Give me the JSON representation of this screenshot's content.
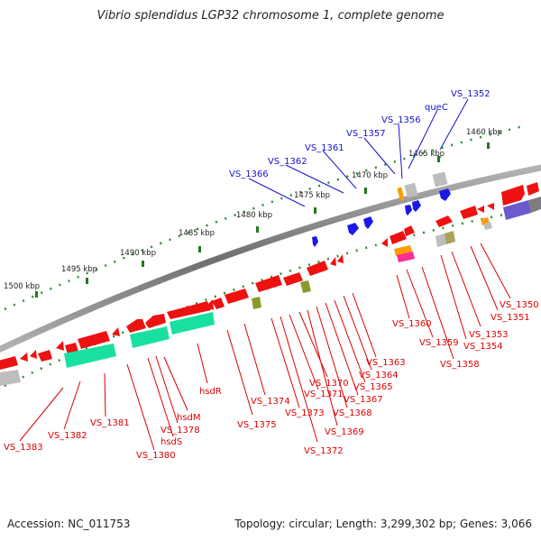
{
  "title": "Vibrio splendidus LGP32 chromosome 1, complete genome",
  "footer": {
    "accession": "Accession: NC_011753",
    "summary": "Topology: circular; Length: 3,299,302 bp; Genes: 3,066"
  },
  "colors": {
    "backbone": "#8a8a8a",
    "forward_gene_label": "#1414c8",
    "reverse_gene_label": "#dc0000",
    "gene_red": "#ee1111",
    "gene_blue": "#1a1ae6",
    "gene_teal": "#19e0a0",
    "gene_gray": "#bdbdbd",
    "gene_olive": "#8a9a2a",
    "gene_orange": "#ff9a00",
    "gene_purple": "#6a5acd",
    "ruler_dots": "#2e8b2e"
  },
  "ruler_labels": [
    "1460 kbp",
    "1465 kbp",
    "1470 kbp",
    "1475 kbp",
    "1480 kbp",
    "1485 kbp",
    "1490 kbp",
    "1495 kbp",
    "1500 kbp"
  ],
  "forward_gene_labels": [
    "VS_1352",
    "queC",
    "VS_1356",
    "VS_1357",
    "VS_1361",
    "VS_1362",
    "VS_1366"
  ],
  "reverse_gene_labels": [
    "VS_1350",
    "VS_1351",
    "VS_1353",
    "VS_1354",
    "VS_1358",
    "VS_1359",
    "VS_1360",
    "VS_1363",
    "VS_1364",
    "VS_1365",
    "VS_1367",
    "VS_1368",
    "VS_1369",
    "VS_1370",
    "VS_1371",
    "VS_1372",
    "VS_1373",
    "VS_1374",
    "VS_1375",
    "hsdR",
    "hsdM",
    "hsdS",
    "VS_1378",
    "VS_1380",
    "VS_1381",
    "VS_1382",
    "VS_1383"
  ]
}
